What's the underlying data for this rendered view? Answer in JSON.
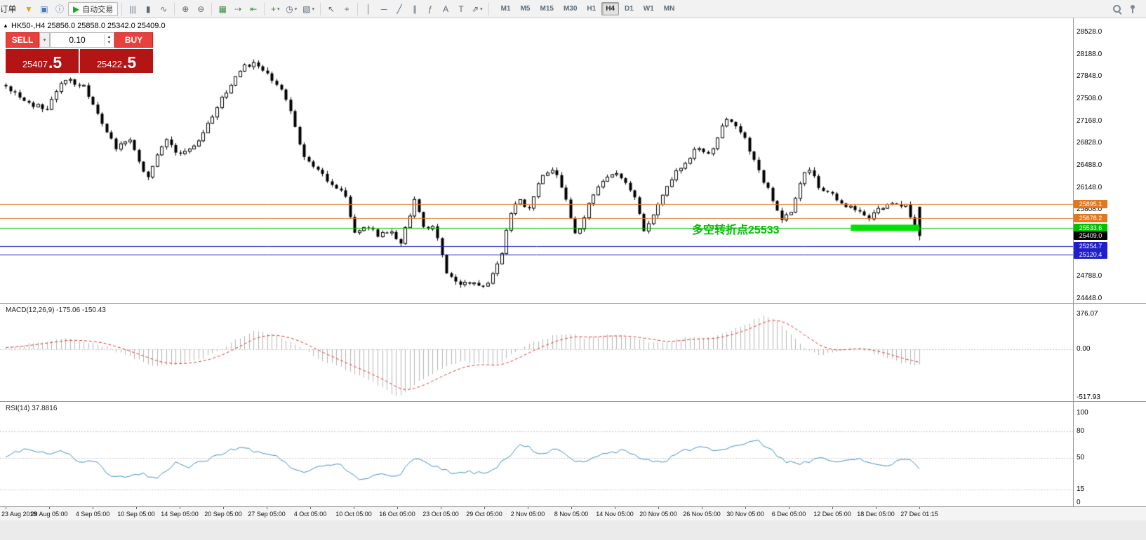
{
  "toolbar": {
    "order_label": "订单",
    "autotrading_label": "自动交易",
    "items": [
      {
        "name": "funnel-icon",
        "glyph": "▼",
        "color": "#d8a414"
      },
      {
        "name": "profiles-icon",
        "glyph": "▣",
        "color": "#4a7ab5"
      },
      {
        "name": "help-icon",
        "glyph": "ⓘ",
        "color": "#4a7ab5"
      },
      {
        "name": "autotrading-button",
        "glyph": "▶",
        "color": "#18a818",
        "label": "自动交易",
        "boxed": true
      },
      {
        "sep": true
      },
      {
        "name": "bar-chart-icon",
        "glyph": "|||"
      },
      {
        "name": "candlestick-icon",
        "glyph": "▮"
      },
      {
        "name": "line-chart-icon",
        "glyph": "∿"
      },
      {
        "sep": true
      },
      {
        "name": "zoom-in-icon",
        "glyph": "⊕"
      },
      {
        "name": "zoom-out-icon",
        "glyph": "⊖"
      },
      {
        "sep": true
      },
      {
        "name": "tile-windows-icon",
        "glyph": "▦",
        "color": "#3c8c3c"
      },
      {
        "name": "auto-scroll-icon",
        "glyph": "⇢",
        "color": "#3c8c3c"
      },
      {
        "name": "chart-shift-icon",
        "glyph": "⇤",
        "color": "#3c8c3c"
      },
      {
        "sep": true
      },
      {
        "name": "new-indicator-icon",
        "glyph": "+",
        "color": "#18a818",
        "dropdown": true
      },
      {
        "name": "periods-icon",
        "glyph": "◷",
        "dropdown": true
      },
      {
        "name": "templates-icon",
        "glyph": "▧",
        "dropdown": true
      },
      {
        "sep": true
      },
      {
        "name": "cursor-icon",
        "glyph": "↖"
      },
      {
        "name": "crosshair-icon",
        "glyph": "+"
      },
      {
        "sep": true
      },
      {
        "name": "vertical-line-icon",
        "glyph": "│"
      },
      {
        "name": "horizontal-line-icon",
        "glyph": "─"
      },
      {
        "name": "trendline-icon",
        "glyph": "╱"
      },
      {
        "name": "channel-icon",
        "glyph": "∥"
      },
      {
        "name": "fibonacci-icon",
        "glyph": "ƒ"
      },
      {
        "name": "text-icon",
        "glyph": "A"
      },
      {
        "name": "text-label-icon",
        "glyph": "T"
      },
      {
        "name": "arrows-icon",
        "glyph": "⇗",
        "dropdown": true
      },
      {
        "sep": true
      }
    ],
    "timeframes": [
      "M1",
      "M5",
      "M15",
      "M30",
      "H1",
      "H4",
      "D1",
      "W1",
      "MN"
    ],
    "active_timeframe": "H4"
  },
  "trade_panel": {
    "sell_label": "SELL",
    "buy_label": "BUY",
    "volume": "0.10",
    "sell_price_main": "25407",
    "sell_price_big": ".5",
    "buy_price_main": "25422",
    "buy_price_big": ".5"
  },
  "main_chart": {
    "title": "HK50-,H4  25856.0 25858.0 25342.0 25409.0",
    "annotation": {
      "text": "多空转折点25533",
      "color": "#00c000"
    },
    "levels": [
      {
        "label": "25895.1",
        "price": 25895.1,
        "color_key": "level_orange"
      },
      {
        "label": "25678.2",
        "price": 25678.2,
        "color_key": "level_orange"
      },
      {
        "label": "25533.6",
        "price": 25533.6,
        "color_key": "level_green"
      },
      {
        "label": "25409.0",
        "price": 25409.0,
        "color_key": "bid_black",
        "bid": true
      },
      {
        "label": "25254.7",
        "price": 25254.7,
        "color_key": "level_blue"
      },
      {
        "label": "25120.4",
        "price": 25120.4,
        "color_key": "level_blue"
      }
    ],
    "axis_ticks": [
      "28528.0",
      "28188.0",
      "27848.0",
      "27508.0",
      "27168.0",
      "26828.0",
      "26488.0",
      "26148.0",
      "25808.0",
      "25468.0",
      "25128.0",
      "24788.0",
      "24448.0"
    ]
  },
  "macd": {
    "label": "MACD(12,26,9) -175.06 -150.43",
    "ticks": [
      {
        "v": 376.07,
        "label": "376.07"
      },
      {
        "v": 0,
        "label": "0.00"
      },
      {
        "v": -517.93,
        "label": "-517.93"
      }
    ]
  },
  "rsi": {
    "label": "RSI(14) 37.8816",
    "ticks": [
      {
        "v": 100,
        "label": "100"
      },
      {
        "v": 80,
        "label": "80"
      },
      {
        "v": 50,
        "label": "50"
      },
      {
        "v": 15,
        "label": "15"
      },
      {
        "v": 0,
        "label": "0"
      }
    ],
    "levels": [
      80,
      50,
      15
    ]
  },
  "time_axis": [
    "23 Aug 2018",
    "29 Aug 05:00",
    "4 Sep 05:00",
    "10 Sep 05:00",
    "14 Sep 05:00",
    "20 Sep 05:00",
    "27 Sep 05:00",
    "4 Oct 05:00",
    "10 Oct 05:00",
    "16 Oct 05:00",
    "23 Oct 05:00",
    "29 Oct 05:00",
    "2 Nov 05:00",
    "8 Nov 05:00",
    "14 Nov 05:00",
    "20 Nov 05:00",
    "26 Nov 05:00",
    "30 Nov 05:00",
    "6 Dec 05:00",
    "12 Dec 05:00",
    "18 Dec 05:00",
    "27 Dec 01:15"
  ],
  "colors": {
    "level_orange": "#e07820",
    "level_green": "#00c000",
    "level_blue": "#2020c8",
    "bid_black": "#000000",
    "macd_signal": "#e03030",
    "macd_hist": "#b4b4b4",
    "rsi_line": "#3c8fc8",
    "band_green": "#00e000"
  },
  "chart_data": {
    "type": "candlestick",
    "symbol": "HK50-",
    "timeframe": "H4",
    "ohlc_current": {
      "open": 25856.0,
      "high": 25858.0,
      "low": 25342.0,
      "close": 25409.0
    },
    "ylim": [
      24448,
      28528
    ],
    "price_anchors": [
      [
        0.0,
        27700
      ],
      [
        0.02,
        27450
      ],
      [
        0.045,
        27350
      ],
      [
        0.065,
        27820
      ],
      [
        0.085,
        27700
      ],
      [
        0.105,
        27150
      ],
      [
        0.12,
        26750
      ],
      [
        0.135,
        26900
      ],
      [
        0.155,
        26300
      ],
      [
        0.175,
        26900
      ],
      [
        0.19,
        26650
      ],
      [
        0.21,
        26850
      ],
      [
        0.23,
        27350
      ],
      [
        0.255,
        27950
      ],
      [
        0.27,
        28060
      ],
      [
        0.285,
        27900
      ],
      [
        0.3,
        27700
      ],
      [
        0.312,
        27300
      ],
      [
        0.325,
        26650
      ],
      [
        0.34,
        26450
      ],
      [
        0.355,
        26200
      ],
      [
        0.37,
        26120
      ],
      [
        0.382,
        25420
      ],
      [
        0.395,
        25580
      ],
      [
        0.408,
        25420
      ],
      [
        0.42,
        25500
      ],
      [
        0.432,
        25300
      ],
      [
        0.448,
        26000
      ],
      [
        0.458,
        25500
      ],
      [
        0.47,
        25530
      ],
      [
        0.482,
        24820
      ],
      [
        0.495,
        24680
      ],
      [
        0.51,
        24720
      ],
      [
        0.522,
        24610
      ],
      [
        0.532,
        24800
      ],
      [
        0.542,
        25100
      ],
      [
        0.552,
        25750
      ],
      [
        0.562,
        25950
      ],
      [
        0.572,
        25800
      ],
      [
        0.582,
        26200
      ],
      [
        0.595,
        26430
      ],
      [
        0.605,
        26280
      ],
      [
        0.615,
        25850
      ],
      [
        0.625,
        25350
      ],
      [
        0.638,
        25900
      ],
      [
        0.652,
        26230
      ],
      [
        0.663,
        26380
      ],
      [
        0.675,
        26280
      ],
      [
        0.687,
        26050
      ],
      [
        0.698,
        25500
      ],
      [
        0.708,
        25680
      ],
      [
        0.718,
        26000
      ],
      [
        0.73,
        26330
      ],
      [
        0.743,
        26500
      ],
      [
        0.757,
        26800
      ],
      [
        0.77,
        26650
      ],
      [
        0.788,
        27200
      ],
      [
        0.8,
        27100
      ],
      [
        0.81,
        26880
      ],
      [
        0.822,
        26440
      ],
      [
        0.835,
        26100
      ],
      [
        0.848,
        25650
      ],
      [
        0.858,
        25750
      ],
      [
        0.868,
        26150
      ],
      [
        0.878,
        26480
      ],
      [
        0.89,
        26150
      ],
      [
        0.903,
        26100
      ],
      [
        0.913,
        25900
      ],
      [
        0.925,
        25850
      ],
      [
        0.935,
        25790
      ],
      [
        0.945,
        25650
      ],
      [
        0.957,
        25850
      ],
      [
        0.97,
        25900
      ],
      [
        0.985,
        25860
      ],
      [
        1.0,
        25409
      ]
    ],
    "macd": {
      "ylim": [
        -517.93,
        376.07
      ],
      "anchors": [
        [
          0.0,
          20
        ],
        [
          0.03,
          70
        ],
        [
          0.065,
          115
        ],
        [
          0.1,
          60
        ],
        [
          0.13,
          -60
        ],
        [
          0.165,
          -185
        ],
        [
          0.19,
          -160
        ],
        [
          0.22,
          -80
        ],
        [
          0.245,
          60
        ],
        [
          0.27,
          195
        ],
        [
          0.29,
          170
        ],
        [
          0.315,
          60
        ],
        [
          0.34,
          -90
        ],
        [
          0.37,
          -210
        ],
        [
          0.4,
          -340
        ],
        [
          0.43,
          -515
        ],
        [
          0.45,
          -360
        ],
        [
          0.475,
          -210
        ],
        [
          0.5,
          -130
        ],
        [
          0.52,
          -155
        ],
        [
          0.535,
          -185
        ],
        [
          0.55,
          -80
        ],
        [
          0.57,
          40
        ],
        [
          0.6,
          150
        ],
        [
          0.62,
          165
        ],
        [
          0.635,
          120
        ],
        [
          0.655,
          155
        ],
        [
          0.68,
          135
        ],
        [
          0.7,
          90
        ],
        [
          0.72,
          60
        ],
        [
          0.735,
          105
        ],
        [
          0.75,
          125
        ],
        [
          0.77,
          115
        ],
        [
          0.79,
          185
        ],
        [
          0.81,
          265
        ],
        [
          0.83,
          375
        ],
        [
          0.845,
          300
        ],
        [
          0.86,
          150
        ],
        [
          0.875,
          20
        ],
        [
          0.89,
          -65
        ],
        [
          0.905,
          -40
        ],
        [
          0.92,
          10
        ],
        [
          0.935,
          15
        ],
        [
          0.95,
          -45
        ],
        [
          0.965,
          -95
        ],
        [
          0.98,
          -145
        ],
        [
          1.0,
          -175
        ]
      ]
    },
    "rsi": {
      "ylim": [
        0,
        100
      ],
      "anchors": [
        [
          0.0,
          52
        ],
        [
          0.02,
          60
        ],
        [
          0.045,
          54
        ],
        [
          0.06,
          59
        ],
        [
          0.08,
          47
        ],
        [
          0.1,
          44
        ],
        [
          0.115,
          30
        ],
        [
          0.13,
          27
        ],
        [
          0.15,
          32
        ],
        [
          0.165,
          26
        ],
        [
          0.185,
          45
        ],
        [
          0.2,
          40
        ],
        [
          0.22,
          48
        ],
        [
          0.245,
          58
        ],
        [
          0.26,
          62
        ],
        [
          0.28,
          55
        ],
        [
          0.3,
          50
        ],
        [
          0.315,
          38
        ],
        [
          0.33,
          35
        ],
        [
          0.35,
          42
        ],
        [
          0.365,
          45
        ],
        [
          0.385,
          26
        ],
        [
          0.4,
          30
        ],
        [
          0.415,
          33
        ],
        [
          0.43,
          30
        ],
        [
          0.445,
          50
        ],
        [
          0.46,
          44
        ],
        [
          0.475,
          40
        ],
        [
          0.49,
          32
        ],
        [
          0.505,
          35
        ],
        [
          0.52,
          33
        ],
        [
          0.535,
          38
        ],
        [
          0.55,
          52
        ],
        [
          0.565,
          66
        ],
        [
          0.578,
          58
        ],
        [
          0.59,
          55
        ],
        [
          0.6,
          60
        ],
        [
          0.615,
          52
        ],
        [
          0.63,
          44
        ],
        [
          0.645,
          50
        ],
        [
          0.66,
          56
        ],
        [
          0.675,
          58
        ],
        [
          0.69,
          52
        ],
        [
          0.705,
          47
        ],
        [
          0.72,
          45
        ],
        [
          0.735,
          56
        ],
        [
          0.75,
          60
        ],
        [
          0.765,
          62
        ],
        [
          0.78,
          58
        ],
        [
          0.795,
          62
        ],
        [
          0.81,
          66
        ],
        [
          0.822,
          69
        ],
        [
          0.835,
          62
        ],
        [
          0.85,
          48
        ],
        [
          0.865,
          43
        ],
        [
          0.878,
          45
        ],
        [
          0.89,
          52
        ],
        [
          0.905,
          48
        ],
        [
          0.92,
          46
        ],
        [
          0.935,
          48
        ],
        [
          0.95,
          44
        ],
        [
          0.963,
          41
        ],
        [
          0.975,
          46
        ],
        [
          0.988,
          49
        ],
        [
          1.0,
          37.9
        ]
      ]
    },
    "highlight_band": {
      "price": 25533.6,
      "x_start_frac": 0.925,
      "x_end_frac": 1.0
    }
  }
}
